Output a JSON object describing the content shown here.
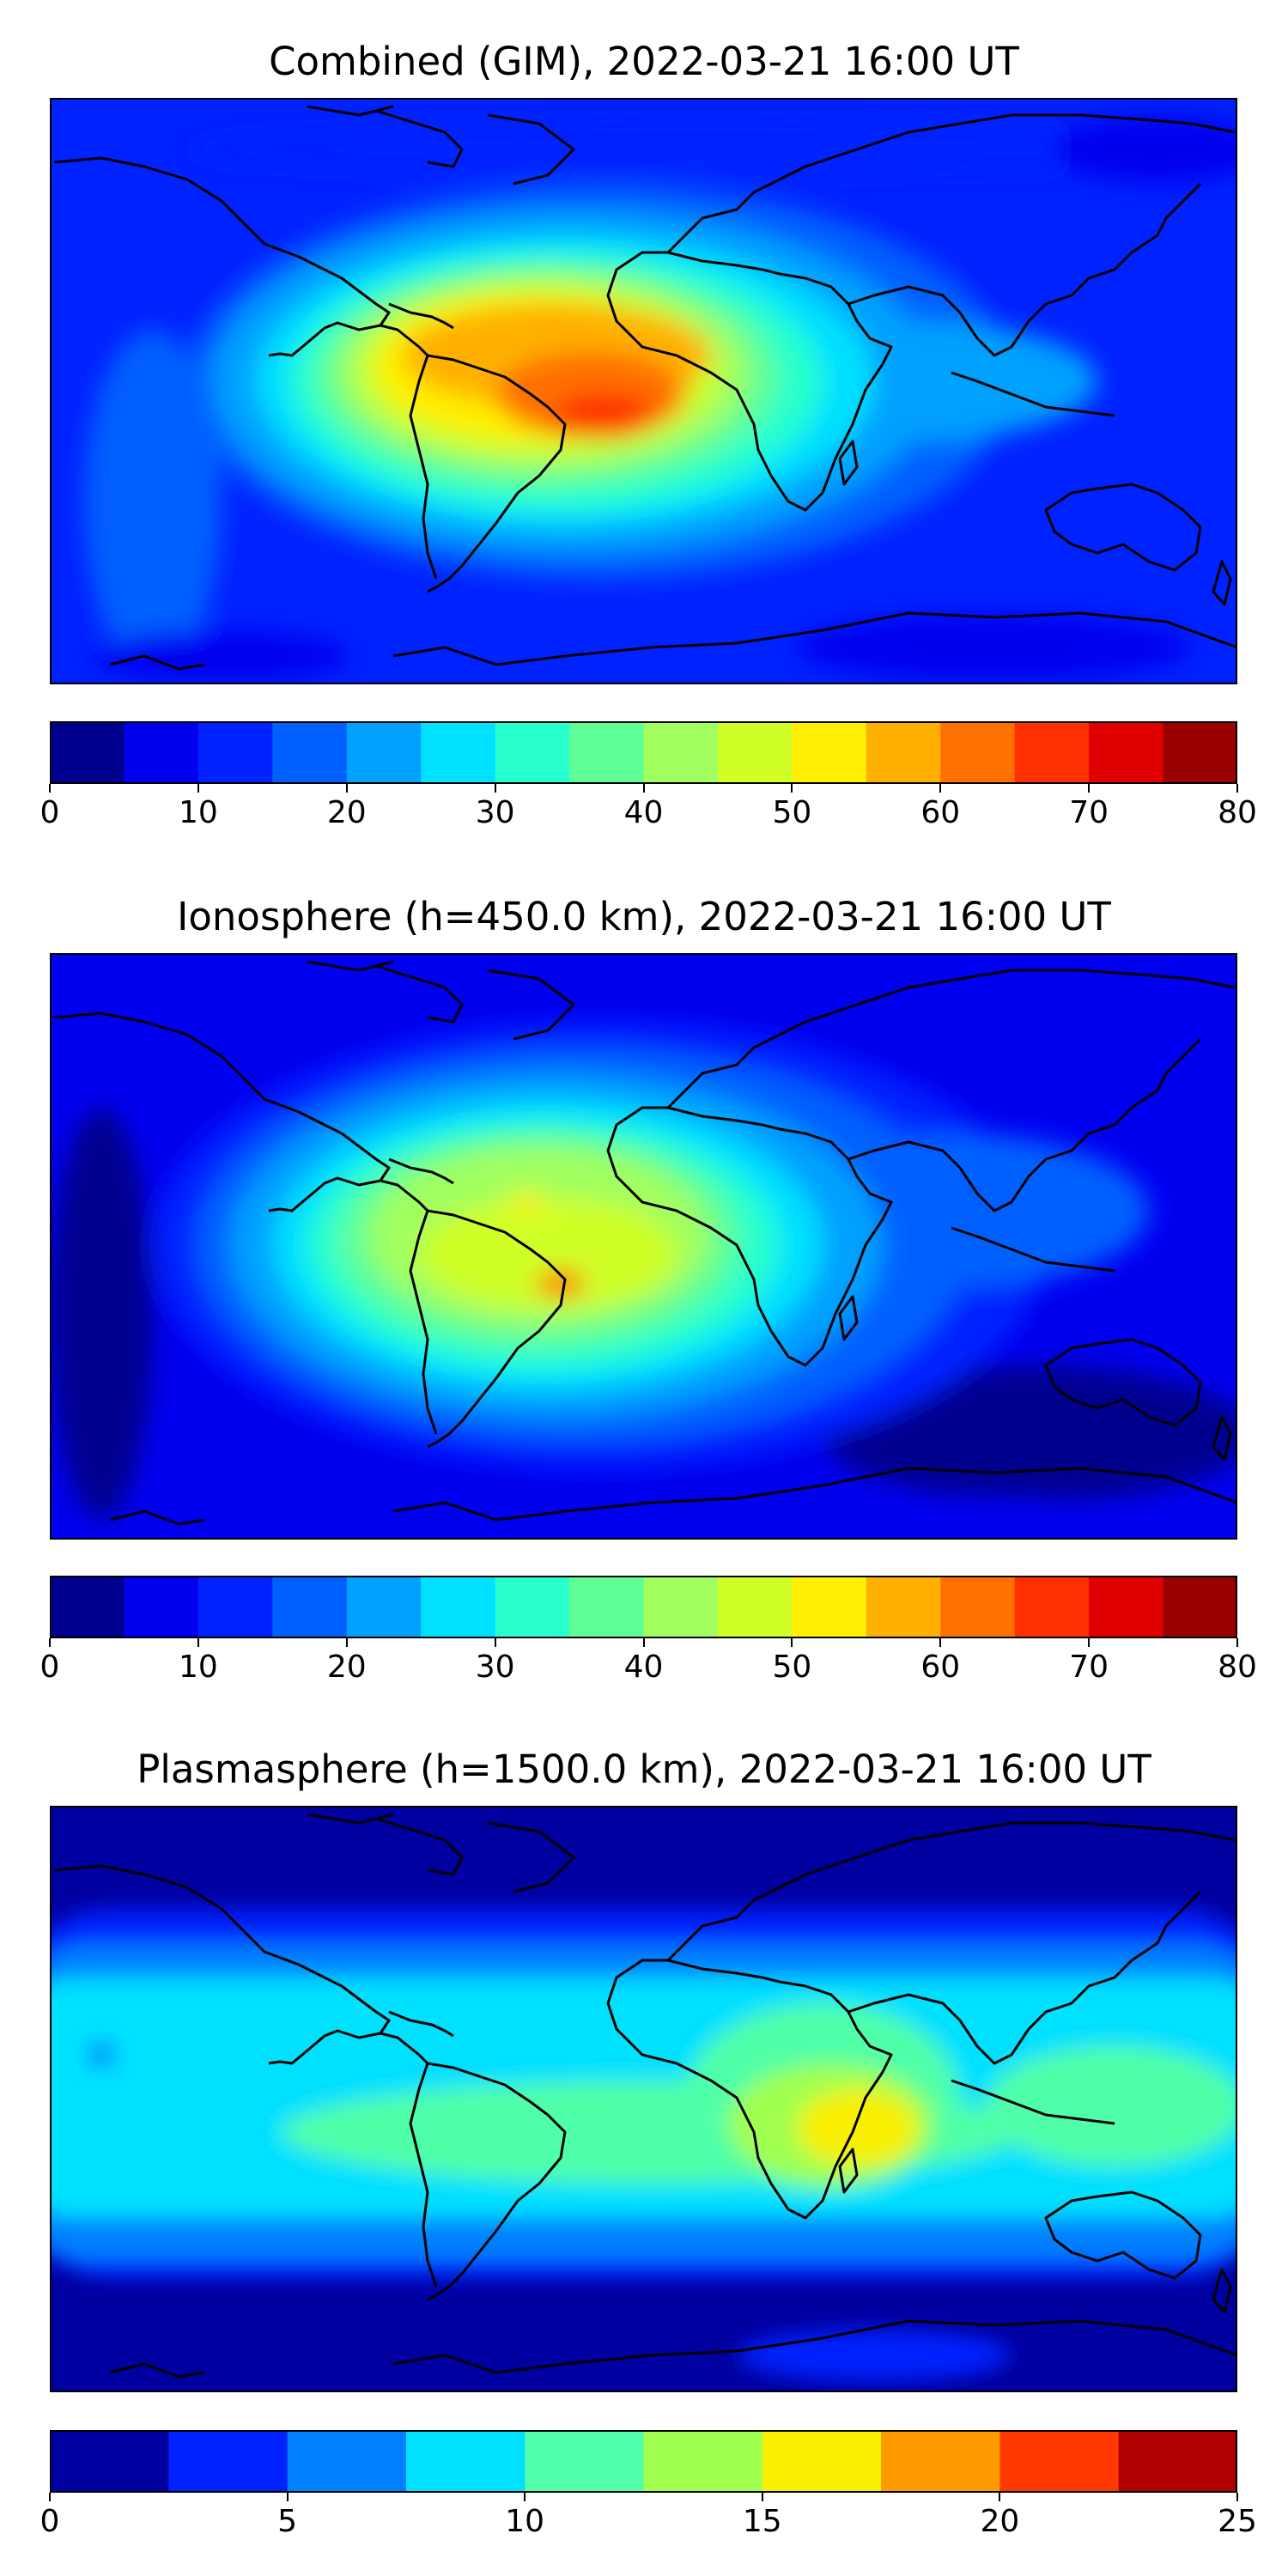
{
  "panels": [
    {
      "id": "combined",
      "title": "Combined (GIM), 2022-03-21 16:00 UT",
      "colorbar_ticks": [
        "0",
        "10",
        "20",
        "30",
        "40",
        "50",
        "60",
        "70",
        "80"
      ],
      "colorbar_range": [
        0,
        80
      ],
      "colorbar_levels": [
        "#00008f",
        "#0000f0",
        "#0022ff",
        "#0060ff",
        "#00a0ff",
        "#00e0ff",
        "#28ffcf",
        "#5fff98",
        "#a0ff5f",
        "#d0ff28",
        "#ffef00",
        "#ffb000",
        "#ff7000",
        "#ff3000",
        "#e00000",
        "#9a0000"
      ]
    },
    {
      "id": "ionosphere",
      "title": "Ionosphere  (h=450.0 km), 2022-03-21 16:00 UT",
      "colorbar_ticks": [
        "0",
        "10",
        "20",
        "30",
        "40",
        "50",
        "60",
        "70",
        "80"
      ],
      "colorbar_range": [
        0,
        80
      ],
      "colorbar_levels": [
        "#00008f",
        "#0000f0",
        "#0022ff",
        "#0060ff",
        "#00a0ff",
        "#00e0ff",
        "#28ffcf",
        "#5fff98",
        "#a0ff5f",
        "#d0ff28",
        "#ffef00",
        "#ffb000",
        "#ff7000",
        "#ff3000",
        "#e00000",
        "#9a0000"
      ]
    },
    {
      "id": "plasmasphere",
      "title": "Plasmasphere (h=1500.0 km), 2022-03-21 16:00 UT",
      "colorbar_ticks": [
        "0",
        "5",
        "10",
        "15",
        "20",
        "25"
      ],
      "colorbar_range": [
        0,
        25
      ],
      "colorbar_levels": [
        "#0000a0",
        "#0022ff",
        "#0080ff",
        "#00e0ff",
        "#50ffa8",
        "#a0ff50",
        "#f8f000",
        "#ff9a00",
        "#ff3800",
        "#b00000"
      ]
    }
  ]
}
